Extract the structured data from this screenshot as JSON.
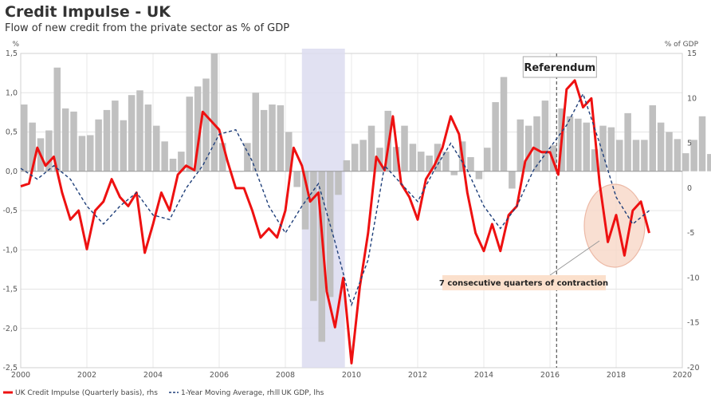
{
  "title": "Credit Impulse - UK",
  "subtitle": "Flow of new credit from the private sector as % of GDP",
  "chart_data": {
    "type": "bar+line",
    "left_axis": {
      "unit_label": "%",
      "range": [
        -2.5,
        1.5
      ],
      "ticks": [
        "1,5",
        "1,0",
        "0,5",
        "0,0",
        "-0,5",
        "-1,0",
        "-1,5",
        "-2,0",
        "-2,5"
      ],
      "tick_values": [
        1.5,
        1.0,
        0.5,
        0.0,
        -0.5,
        -1.0,
        -1.5,
        -2.0,
        -2.5
      ]
    },
    "right_axis": {
      "unit_label": "% of GDP",
      "range": [
        -20,
        15
      ],
      "ticks": [
        "15",
        "10",
        "5",
        "0",
        "-5",
        "-10",
        "-15",
        "-20"
      ],
      "tick_values": [
        15,
        10,
        5,
        0,
        -5,
        -10,
        -15,
        -20
      ]
    },
    "x_axis": {
      "range": [
        2000,
        2020
      ],
      "ticks": [
        "2000",
        "2002",
        "2004",
        "2006",
        "2008",
        "2010",
        "2012",
        "2014",
        "2016",
        "2018",
        "2020"
      ],
      "tick_values": [
        2000,
        2002,
        2004,
        2006,
        2008,
        2010,
        2012,
        2014,
        2016,
        2018,
        2020
      ]
    },
    "grid": true,
    "recession_shade": {
      "start": 2008.5,
      "end": 2009.8,
      "color": "#dcdcf0"
    },
    "referendum": {
      "label": "Referendum",
      "x": 2016.2
    },
    "annotation": {
      "text": "7 consecutive quarters of contraction"
    },
    "legend": [
      "UK Credit Impulse (Quarterly basis), rhs",
      "1-Year Moving Average, rhs",
      "UK GDP, lhs"
    ],
    "colors": {
      "impulse": "#ee1111",
      "moving_average": "#1f3f7a",
      "gdp": "#c0c0c0",
      "highlight_fill": "#f8d8c8",
      "highlight_stroke": "#e8a890",
      "annotation_bg": "#fbe0cc"
    },
    "gdp_quarterly": {
      "start": 2000.0,
      "step": 0.25,
      "values": [
        0.85,
        0.62,
        0.42,
        0.52,
        1.32,
        0.8,
        0.76,
        0.45,
        0.46,
        0.66,
        0.78,
        0.9,
        0.65,
        0.97,
        1.03,
        0.85,
        0.58,
        0.38,
        0.16,
        0.25,
        0.95,
        1.08,
        1.18,
        1.5,
        0.36,
        0.0,
        0.0,
        0.36,
        1.0,
        0.78,
        0.85,
        0.84,
        0.5,
        -0.2,
        -0.74,
        -1.65,
        -2.17,
        -1.6,
        -0.3,
        0.14,
        0.35,
        0.4,
        0.58,
        0.3,
        0.77,
        0.31,
        0.58,
        0.35,
        0.25,
        0.2,
        0.35,
        0.25,
        -0.05,
        0.38,
        0.18,
        -0.1,
        0.3,
        0.88,
        1.2,
        -0.22,
        0.66,
        0.58,
        0.7,
        0.9,
        0.33,
        0.8,
        0.7,
        0.67,
        0.62,
        0.28,
        0.58,
        0.56,
        0.4,
        0.74,
        0.4,
        0.4,
        0.84,
        0.62,
        0.5,
        0.41,
        0.23,
        0.4,
        0.7,
        0.22,
        0.5,
        -0.2
      ]
    },
    "impulse_points": [
      [
        2000.0,
        0.2
      ],
      [
        2000.25,
        0.5
      ],
      [
        2000.5,
        4.5
      ],
      [
        2000.75,
        2.5
      ],
      [
        2001.0,
        3.5
      ],
      [
        2001.25,
        -0.5
      ],
      [
        2001.5,
        -3.5
      ],
      [
        2001.75,
        -2.5
      ],
      [
        2002.0,
        -6.8
      ],
      [
        2002.25,
        -2.5
      ],
      [
        2002.5,
        -1.5
      ],
      [
        2002.75,
        1.0
      ],
      [
        2003.0,
        -1.0
      ],
      [
        2003.25,
        -2.0
      ],
      [
        2003.5,
        -0.5
      ],
      [
        2003.75,
        -7.2
      ],
      [
        2004.0,
        -4.0
      ],
      [
        2004.25,
        -0.5
      ],
      [
        2004.5,
        -2.5
      ],
      [
        2004.75,
        1.5
      ],
      [
        2005.0,
        2.5
      ],
      [
        2005.25,
        2.0
      ],
      [
        2005.5,
        8.5
      ],
      [
        2005.75,
        7.5
      ],
      [
        2006.0,
        6.5
      ],
      [
        2006.25,
        3.0
      ],
      [
        2006.5,
        0.0
      ],
      [
        2006.75,
        0.0
      ],
      [
        2007.0,
        -2.5
      ],
      [
        2007.25,
        -5.5
      ],
      [
        2007.5,
        -4.5
      ],
      [
        2007.75,
        -5.5
      ],
      [
        2008.0,
        -2.5
      ],
      [
        2008.25,
        4.5
      ],
      [
        2008.5,
        2.5
      ],
      [
        2008.75,
        -1.5
      ],
      [
        2009.0,
        -0.5
      ],
      [
        2009.25,
        -11.5
      ],
      [
        2009.5,
        -15.5
      ],
      [
        2009.75,
        -10.0
      ],
      [
        2010.0,
        -19.5
      ],
      [
        2010.25,
        -11.0
      ],
      [
        2010.5,
        -5.0
      ],
      [
        2010.75,
        3.5
      ],
      [
        2011.0,
        2.0
      ],
      [
        2011.25,
        8.0
      ],
      [
        2011.5,
        0.5
      ],
      [
        2011.75,
        -1.0
      ],
      [
        2012.0,
        -3.5
      ],
      [
        2012.25,
        1.0
      ],
      [
        2012.5,
        2.5
      ],
      [
        2012.75,
        4.5
      ],
      [
        2013.0,
        8.0
      ],
      [
        2013.25,
        6.0
      ],
      [
        2013.5,
        -0.5
      ],
      [
        2013.75,
        -5.0
      ],
      [
        2014.0,
        -7.0
      ],
      [
        2014.25,
        -4.0
      ],
      [
        2014.5,
        -7.0
      ],
      [
        2014.75,
        -3.0
      ],
      [
        2015.0,
        -2.0
      ],
      [
        2015.25,
        3.0
      ],
      [
        2015.5,
        4.5
      ],
      [
        2015.75,
        4.0
      ],
      [
        2016.0,
        4.0
      ],
      [
        2016.25,
        1.5
      ],
      [
        2016.5,
        11.0
      ],
      [
        2016.75,
        12.0
      ],
      [
        2017.0,
        9.0
      ],
      [
        2017.25,
        10.0
      ],
      [
        2017.5,
        0.5
      ],
      [
        2017.75,
        -6.0
      ],
      [
        2018.0,
        -3.0
      ],
      [
        2018.25,
        -7.5
      ],
      [
        2018.5,
        -2.5
      ],
      [
        2018.75,
        -1.5
      ],
      [
        2019.0,
        -5.0
      ]
    ],
    "moving_average_points": [
      [
        2000.0,
        2.2
      ],
      [
        2000.5,
        1.0
      ],
      [
        2001.0,
        2.5
      ],
      [
        2001.5,
        1.0
      ],
      [
        2002.0,
        -2.0
      ],
      [
        2002.5,
        -4.0
      ],
      [
        2003.0,
        -2.0
      ],
      [
        2003.5,
        -0.5
      ],
      [
        2004.0,
        -3.0
      ],
      [
        2004.5,
        -3.5
      ],
      [
        2005.0,
        0.0
      ],
      [
        2005.5,
        2.5
      ],
      [
        2006.0,
        6.0
      ],
      [
        2006.5,
        6.5
      ],
      [
        2007.0,
        3.0
      ],
      [
        2007.5,
        -2.0
      ],
      [
        2008.0,
        -5.0
      ],
      [
        2008.5,
        -2.0
      ],
      [
        2009.0,
        0.5
      ],
      [
        2009.5,
        -6.0
      ],
      [
        2010.0,
        -13.0
      ],
      [
        2010.5,
        -8.0
      ],
      [
        2011.0,
        2.5
      ],
      [
        2011.5,
        0.5
      ],
      [
        2012.0,
        -1.5
      ],
      [
        2012.5,
        2.0
      ],
      [
        2013.0,
        5.0
      ],
      [
        2013.5,
        2.0
      ],
      [
        2014.0,
        -2.0
      ],
      [
        2014.5,
        -4.5
      ],
      [
        2015.0,
        -2.0
      ],
      [
        2015.5,
        2.0
      ],
      [
        2016.0,
        4.5
      ],
      [
        2016.5,
        7.0
      ],
      [
        2017.0,
        10.5
      ],
      [
        2017.5,
        5.0
      ],
      [
        2018.0,
        -1.0
      ],
      [
        2018.5,
        -4.0
      ],
      [
        2019.0,
        -2.5
      ]
    ]
  }
}
